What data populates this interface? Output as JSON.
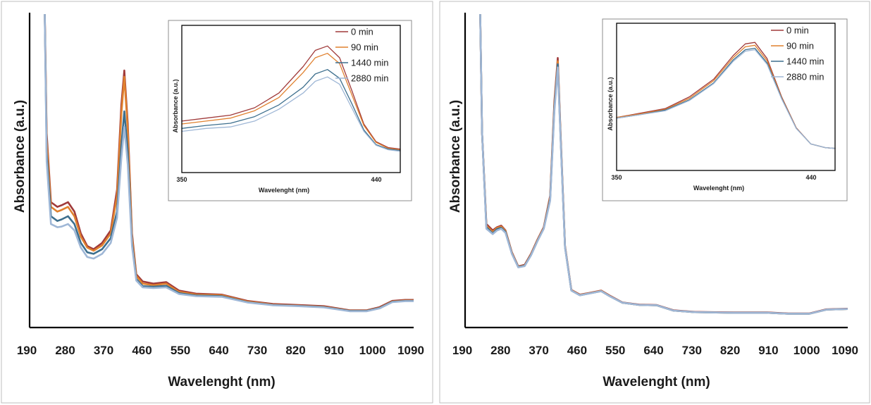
{
  "chart_data": [
    {
      "type": "line",
      "title": "",
      "xlabel": "Wavelenght (nm)",
      "ylabel": "Absorbance (a.u.)",
      "xlim": [
        190,
        1090
      ],
      "ylim": [
        0,
        1
      ],
      "xticks": [
        "190",
        "280",
        "370",
        "460",
        "550",
        "640",
        "730",
        "820",
        "910",
        "1000",
        "1090"
      ],
      "grid": false,
      "colors": [
        "#a03a3a",
        "#e0812f",
        "#3d6f8e",
        "#9fb7d6"
      ],
      "series": [
        {
          "name": "0 min",
          "x": [
            225,
            230,
            240,
            255,
            265,
            280,
            295,
            310,
            325,
            340,
            360,
            380,
            395,
            405,
            412,
            420,
            430,
            440,
            455,
            480,
            510,
            540,
            580,
            640,
            700,
            760,
            820,
            880,
            940,
            980,
            1010,
            1040,
            1070,
            1090
          ],
          "y": [
            1.05,
            0.62,
            0.4,
            0.385,
            0.39,
            0.4,
            0.37,
            0.3,
            0.26,
            0.25,
            0.27,
            0.31,
            0.44,
            0.71,
            0.82,
            0.65,
            0.3,
            0.17,
            0.147,
            0.14,
            0.145,
            0.118,
            0.108,
            0.105,
            0.085,
            0.075,
            0.072,
            0.068,
            0.055,
            0.055,
            0.065,
            0.085,
            0.088,
            0.088
          ]
        },
        {
          "name": "90 min",
          "x": [
            225,
            230,
            240,
            255,
            265,
            280,
            295,
            310,
            325,
            340,
            360,
            380,
            395,
            405,
            412,
            420,
            430,
            440,
            455,
            480,
            510,
            540,
            580,
            640,
            700,
            760,
            820,
            880,
            940,
            980,
            1010,
            1040,
            1070,
            1090
          ],
          "y": [
            1.05,
            0.6,
            0.385,
            0.37,
            0.375,
            0.385,
            0.355,
            0.29,
            0.255,
            0.245,
            0.262,
            0.3,
            0.42,
            0.68,
            0.8,
            0.63,
            0.29,
            0.165,
            0.14,
            0.135,
            0.14,
            0.114,
            0.105,
            0.103,
            0.083,
            0.073,
            0.07,
            0.066,
            0.054,
            0.054,
            0.063,
            0.083,
            0.086,
            0.086
          ]
        },
        {
          "name": "1440 min",
          "x": [
            225,
            230,
            240,
            255,
            265,
            280,
            295,
            310,
            325,
            340,
            360,
            380,
            395,
            405,
            412,
            420,
            430,
            440,
            455,
            480,
            510,
            540,
            580,
            640,
            700,
            760,
            820,
            880,
            940,
            980,
            1010,
            1040,
            1070,
            1090
          ],
          "y": [
            1.05,
            0.56,
            0.355,
            0.34,
            0.345,
            0.355,
            0.33,
            0.27,
            0.24,
            0.235,
            0.25,
            0.285,
            0.37,
            0.58,
            0.69,
            0.56,
            0.27,
            0.155,
            0.132,
            0.13,
            0.133,
            0.11,
            0.102,
            0.1,
            0.081,
            0.072,
            0.069,
            0.065,
            0.053,
            0.053,
            0.062,
            0.082,
            0.085,
            0.085
          ]
        },
        {
          "name": "2880 min",
          "x": [
            225,
            230,
            240,
            255,
            265,
            280,
            295,
            310,
            325,
            340,
            360,
            380,
            395,
            405,
            412,
            420,
            430,
            440,
            455,
            480,
            510,
            540,
            580,
            640,
            700,
            760,
            820,
            880,
            940,
            980,
            1010,
            1040,
            1070,
            1090
          ],
          "y": [
            1.05,
            0.53,
            0.33,
            0.32,
            0.322,
            0.33,
            0.31,
            0.255,
            0.225,
            0.22,
            0.235,
            0.27,
            0.35,
            0.54,
            0.64,
            0.52,
            0.26,
            0.15,
            0.128,
            0.126,
            0.128,
            0.107,
            0.1,
            0.098,
            0.08,
            0.071,
            0.068,
            0.064,
            0.052,
            0.052,
            0.061,
            0.081,
            0.084,
            0.084
          ]
        }
      ],
      "inset": {
        "xlabel": "Wavelenght (nm)",
        "ylabel": "Absorbance (a.u.)",
        "xlim": [
          350,
          440
        ],
        "ylim": [
          0,
          1
        ],
        "xticks": [
          "350",
          "440"
        ],
        "legend_position": "top-right",
        "series": [
          {
            "name": "0 min",
            "x": [
              350,
              360,
              370,
              380,
              390,
              400,
              405,
              410,
              415,
              420,
              425,
              430,
              435,
              440
            ],
            "y": [
              0.35,
              0.37,
              0.39,
              0.44,
              0.54,
              0.72,
              0.83,
              0.86,
              0.78,
              0.56,
              0.33,
              0.21,
              0.17,
              0.16
            ]
          },
          {
            "name": "90 min",
            "x": [
              350,
              360,
              370,
              380,
              390,
              400,
              405,
              410,
              415,
              420,
              425,
              430,
              435,
              440
            ],
            "y": [
              0.33,
              0.35,
              0.37,
              0.42,
              0.51,
              0.68,
              0.78,
              0.81,
              0.74,
              0.53,
              0.32,
              0.205,
              0.165,
              0.155
            ]
          },
          {
            "name": "1440 min",
            "x": [
              350,
              360,
              370,
              380,
              390,
              400,
              405,
              410,
              415,
              420,
              425,
              430,
              435,
              440
            ],
            "y": [
              0.3,
              0.32,
              0.335,
              0.38,
              0.46,
              0.58,
              0.67,
              0.7,
              0.64,
              0.47,
              0.29,
              0.19,
              0.16,
              0.15
            ]
          },
          {
            "name": "2880 min",
            "x": [
              350,
              360,
              370,
              380,
              390,
              400,
              405,
              410,
              415,
              420,
              425,
              430,
              435,
              440
            ],
            "y": [
              0.28,
              0.3,
              0.31,
              0.35,
              0.43,
              0.54,
              0.62,
              0.65,
              0.6,
              0.44,
              0.28,
              0.185,
              0.155,
              0.145
            ]
          }
        ]
      }
    },
    {
      "type": "line",
      "title": "",
      "xlabel": "Wavelenght (nm)",
      "ylabel": "Absorbance (a.u.)",
      "xlim": [
        190,
        1090
      ],
      "ylim": [
        0,
        1
      ],
      "xticks": [
        "190",
        "280",
        "370",
        "460",
        "550",
        "640",
        "730",
        "820",
        "910",
        "1000",
        "1090"
      ],
      "grid": false,
      "colors": [
        "#a03a3a",
        "#e0812f",
        "#3d6f8e",
        "#9fb7d6"
      ],
      "series": [
        {
          "name": "0 min",
          "x": [
            225,
            230,
            240,
            255,
            265,
            275,
            285,
            300,
            315,
            330,
            345,
            360,
            375,
            390,
            400,
            408,
            415,
            425,
            440,
            460,
            480,
            510,
            530,
            560,
            600,
            640,
            680,
            730,
            820,
            900,
            950,
            1000,
            1040,
            1090
          ],
          "y": [
            1.05,
            0.62,
            0.33,
            0.31,
            0.32,
            0.325,
            0.31,
            0.24,
            0.195,
            0.2,
            0.235,
            0.28,
            0.32,
            0.42,
            0.72,
            0.86,
            0.6,
            0.26,
            0.12,
            0.105,
            0.11,
            0.118,
            0.102,
            0.08,
            0.073,
            0.072,
            0.055,
            0.05,
            0.048,
            0.048,
            0.045,
            0.045,
            0.058,
            0.06
          ]
        },
        {
          "name": "90 min",
          "x": [
            225,
            230,
            240,
            255,
            265,
            275,
            285,
            300,
            315,
            330,
            345,
            360,
            375,
            390,
            400,
            408,
            415,
            425,
            440,
            460,
            480,
            510,
            530,
            560,
            600,
            640,
            680,
            730,
            820,
            900,
            950,
            1000,
            1040,
            1090
          ],
          "y": [
            1.05,
            0.62,
            0.325,
            0.305,
            0.318,
            0.322,
            0.308,
            0.238,
            0.194,
            0.198,
            0.233,
            0.278,
            0.318,
            0.415,
            0.71,
            0.85,
            0.595,
            0.258,
            0.119,
            0.104,
            0.109,
            0.117,
            0.101,
            0.079,
            0.072,
            0.071,
            0.054,
            0.049,
            0.047,
            0.047,
            0.044,
            0.044,
            0.057,
            0.059
          ]
        },
        {
          "name": "1440 min",
          "x": [
            225,
            230,
            240,
            255,
            265,
            275,
            285,
            300,
            315,
            330,
            345,
            360,
            375,
            390,
            400,
            408,
            415,
            425,
            440,
            460,
            480,
            510,
            530,
            560,
            600,
            640,
            680,
            730,
            820,
            900,
            950,
            1000,
            1040,
            1090
          ],
          "y": [
            1.05,
            0.62,
            0.32,
            0.3,
            0.314,
            0.318,
            0.305,
            0.236,
            0.193,
            0.197,
            0.231,
            0.276,
            0.316,
            0.41,
            0.7,
            0.84,
            0.59,
            0.256,
            0.118,
            0.103,
            0.108,
            0.116,
            0.1,
            0.079,
            0.072,
            0.071,
            0.054,
            0.049,
            0.047,
            0.047,
            0.044,
            0.044,
            0.057,
            0.059
          ]
        },
        {
          "name": "2880 min",
          "x": [
            225,
            230,
            240,
            255,
            265,
            275,
            285,
            300,
            315,
            330,
            345,
            360,
            375,
            390,
            400,
            408,
            415,
            425,
            440,
            460,
            480,
            510,
            530,
            560,
            600,
            640,
            680,
            730,
            820,
            900,
            950,
            1000,
            1040,
            1090
          ],
          "y": [
            1.05,
            0.62,
            0.315,
            0.298,
            0.31,
            0.315,
            0.302,
            0.235,
            0.192,
            0.196,
            0.23,
            0.275,
            0.315,
            0.405,
            0.69,
            0.83,
            0.585,
            0.255,
            0.118,
            0.103,
            0.108,
            0.116,
            0.1,
            0.079,
            0.072,
            0.071,
            0.054,
            0.049,
            0.047,
            0.047,
            0.044,
            0.044,
            0.057,
            0.059
          ]
        }
      ],
      "inset": {
        "xlabel": "Wavelenght (nm)",
        "ylabel": "Absorbance (a.u.)",
        "xlim": [
          350,
          440
        ],
        "ylim": [
          0,
          1
        ],
        "xticks": [
          "350",
          "440"
        ],
        "legend_position": "top-right",
        "series": [
          {
            "name": "0 min",
            "x": [
              350,
              360,
              370,
              380,
              390,
              398,
              403,
              407,
              412,
              418,
              424,
              430,
              436,
              440
            ],
            "y": [
              0.36,
              0.39,
              0.42,
              0.5,
              0.62,
              0.78,
              0.86,
              0.87,
              0.76,
              0.5,
              0.29,
              0.18,
              0.155,
              0.15
            ]
          },
          {
            "name": "90 min",
            "x": [
              350,
              360,
              370,
              380,
              390,
              398,
              403,
              407,
              412,
              418,
              424,
              430,
              436,
              440
            ],
            "y": [
              0.36,
              0.385,
              0.415,
              0.49,
              0.61,
              0.765,
              0.84,
              0.85,
              0.745,
              0.495,
              0.288,
              0.18,
              0.155,
              0.15
            ]
          },
          {
            "name": "1440 min",
            "x": [
              350,
              360,
              370,
              380,
              390,
              398,
              403,
              407,
              412,
              418,
              424,
              430,
              436,
              440
            ],
            "y": [
              0.355,
              0.38,
              0.41,
              0.48,
              0.595,
              0.75,
              0.82,
              0.83,
              0.73,
              0.49,
              0.286,
              0.18,
              0.155,
              0.15
            ]
          },
          {
            "name": "2880 min",
            "x": [
              350,
              360,
              370,
              380,
              390,
              398,
              403,
              407,
              412,
              418,
              424,
              430,
              436,
              440
            ],
            "y": [
              0.355,
              0.38,
              0.405,
              0.475,
              0.59,
              0.74,
              0.81,
              0.82,
              0.72,
              0.485,
              0.285,
              0.18,
              0.155,
              0.15
            ]
          }
        ]
      }
    }
  ]
}
